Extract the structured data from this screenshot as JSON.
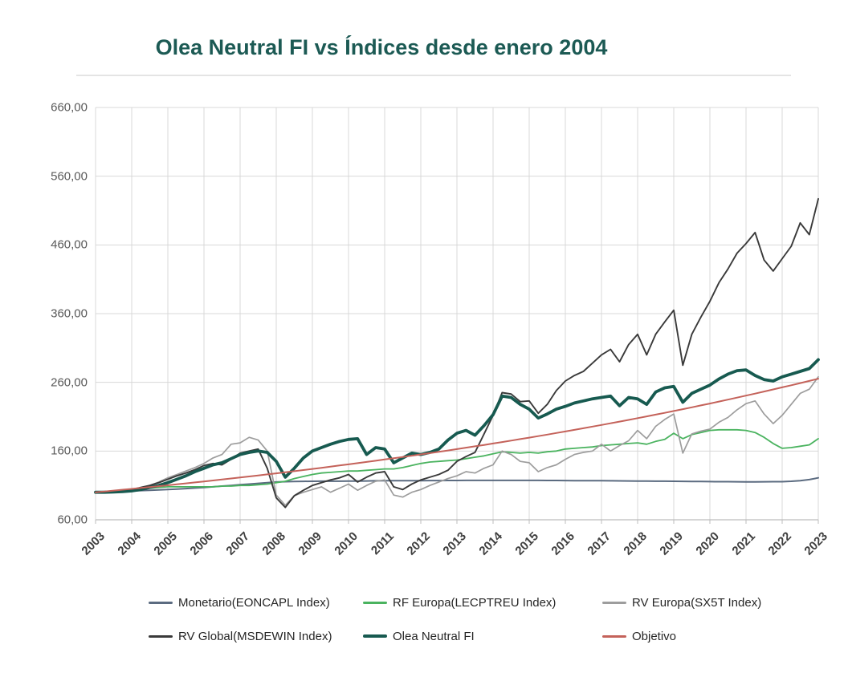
{
  "header": {
    "title": "Olea Neutral FI vs Índices desde enero 2004",
    "title_color": "#1c5a54"
  },
  "chart_data": {
    "type": "line",
    "title": "Olea Neutral FI vs Índices desde enero 2004",
    "x_start": 2003,
    "x_step": 0.25,
    "x_tick_labels": [
      "2003",
      "2004",
      "2005",
      "2006",
      "2007",
      "2008",
      "2009",
      "2010",
      "2011",
      "2012",
      "2013",
      "2014",
      "2015",
      "2016",
      "2017",
      "2018",
      "2019",
      "2020",
      "2021",
      "2022",
      "2023"
    ],
    "y_axis": {
      "min": 60,
      "max": 660,
      "gridline_step": 100,
      "grid": true
    },
    "y_ticks": [
      {
        "value": 660,
        "label": "660,00"
      },
      {
        "value": 560,
        "label": "560,00"
      },
      {
        "value": 460,
        "label": "460,00"
      },
      {
        "value": 360,
        "label": "360,00"
      },
      {
        "value": 260,
        "label": "260,00"
      },
      {
        "value": 160,
        "label": "160,00"
      },
      {
        "value": 60,
        "label": "60,00"
      }
    ],
    "colors": {
      "gridline": "#d8d8d8",
      "axis": "#bdbdbd"
    },
    "legend_position": "bottom",
    "legend_rows": [
      [
        0,
        1,
        2
      ],
      [
        3,
        4,
        5
      ]
    ],
    "series": [
      {
        "name": "Monetario(EONCAPL Index)",
        "color": "#5b6b80",
        "width": 2,
        "values": [
          100,
          100.5,
          101,
          101.5,
          102,
          102.5,
          103,
          103.5,
          104,
          104.7,
          105.4,
          106.2,
          107,
          108,
          109,
          110,
          111,
          112,
          113,
          114,
          115,
          115.4,
          115.7,
          115.9,
          116,
          116.1,
          116.2,
          116.2,
          116.3,
          116.4,
          116.5,
          116.7,
          116.8,
          116.9,
          117,
          117,
          117,
          117.1,
          117.1,
          117.2,
          117.2,
          117.3,
          117.3,
          117.3,
          117.3,
          117.3,
          117.3,
          117.3,
          117.3,
          117.3,
          117.2,
          117.2,
          117.1,
          117,
          117,
          116.9,
          116.8,
          116.7,
          116.6,
          116.5,
          116.4,
          116.3,
          116.2,
          116.1,
          116,
          115.9,
          115.8,
          115.7,
          115.6,
          115.5,
          115.4,
          115.3,
          115.2,
          115.2,
          115.3,
          115.4,
          115.5,
          116,
          117,
          118.5,
          121
        ]
      },
      {
        "name": "RF Europa(LECPTREU Index)",
        "color": "#4ab35f",
        "width": 1.8,
        "values": [
          100,
          101,
          102,
          103,
          104,
          105,
          106,
          107,
          108,
          108,
          108,
          108,
          108,
          108,
          109,
          109,
          110,
          110,
          111,
          112,
          114,
          116,
          120,
          123,
          126,
          128,
          129,
          130,
          131,
          131,
          132,
          133,
          134,
          134,
          136,
          139,
          142,
          144,
          145,
          146,
          147,
          149,
          151,
          153,
          156,
          159,
          158,
          157,
          158,
          157,
          159,
          160,
          163,
          164,
          165,
          166,
          168,
          169,
          170,
          171,
          172,
          170,
          174,
          177,
          186,
          178,
          184,
          187,
          190,
          191,
          191,
          191,
          190,
          187,
          180,
          171,
          164,
          165,
          167,
          169,
          178
        ]
      },
      {
        "name": "RV Europa(SX5T Index)",
        "color": "#9d9d9d",
        "width": 1.7,
        "values": [
          100,
          101,
          102,
          102,
          103,
          106,
          110,
          115,
          121,
          126,
          131,
          136,
          142,
          150,
          155,
          170,
          172,
          180,
          176,
          160,
          96,
          81,
          95,
          100,
          104,
          108,
          100,
          106,
          112,
          103,
          110,
          116,
          118,
          96,
          93,
          100,
          104,
          110,
          115,
          120,
          124,
          130,
          128,
          135,
          140,
          160,
          155,
          145,
          143,
          130,
          136,
          140,
          148,
          155,
          158,
          160,
          170,
          160,
          168,
          175,
          190,
          178,
          196,
          206,
          214,
          157,
          185,
          189,
          192,
          202,
          209,
          220,
          229,
          233,
          214,
          200,
          212,
          228,
          244,
          250,
          268
        ]
      },
      {
        "name": "RV Global(MSDEWIN Index)",
        "color": "#3a3a3a",
        "width": 1.9,
        "values": [
          100,
          101,
          102,
          103,
          104,
          107,
          110,
          114,
          119,
          124,
          128,
          133,
          139,
          142,
          140,
          148,
          157,
          160,
          163,
          135,
          92,
          78,
          95,
          103,
          110,
          114,
          118,
          121,
          126,
          115,
          122,
          128,
          130,
          108,
          104,
          112,
          118,
          122,
          126,
          132,
          145,
          152,
          158,
          185,
          212,
          245,
          243,
          232,
          233,
          215,
          228,
          248,
          262,
          270,
          276,
          288,
          300,
          308,
          290,
          315,
          330,
          300,
          330,
          348,
          365,
          285,
          330,
          355,
          378,
          405,
          425,
          448,
          462,
          478,
          438,
          422,
          440,
          458,
          492,
          475,
          527
        ]
      },
      {
        "name": "Olea Neutral FI",
        "color": "#175a50",
        "width": 3.8,
        "values": [
          100,
          100,
          100.5,
          101,
          102,
          104,
          107,
          110,
          114,
          119,
          124,
          130,
          135,
          140,
          143,
          149,
          155,
          158,
          160,
          158,
          145,
          122,
          135,
          150,
          160,
          165,
          170,
          174,
          177,
          178,
          155,
          165,
          163,
          143,
          150,
          157,
          155,
          158,
          163,
          176,
          186,
          190,
          183,
          197,
          213,
          240,
          238,
          228,
          221,
          208,
          214,
          221,
          225,
          230,
          233,
          236,
          238,
          240,
          226,
          238,
          236,
          228,
          246,
          252,
          254,
          231,
          244,
          250,
          256,
          265,
          272,
          277,
          278,
          270,
          264,
          262,
          268,
          272,
          276,
          280,
          293
        ]
      },
      {
        "name": "Objetivo",
        "color": "#c4625a",
        "width": 2,
        "values": [
          100,
          101.23,
          102.47,
          103.73,
          105,
          106.29,
          107.59,
          108.92,
          110.25,
          111.6,
          112.97,
          114.36,
          115.76,
          117.18,
          118.62,
          120.08,
          121.55,
          123.04,
          124.55,
          126.08,
          127.63,
          129.2,
          130.78,
          132.39,
          134.01,
          135.65,
          137.32,
          139.01,
          140.71,
          142.44,
          144.19,
          145.96,
          147.75,
          149.56,
          151.39,
          153.25,
          155.13,
          157.03,
          158.96,
          160.91,
          162.89,
          164.89,
          166.91,
          168.96,
          171.03,
          173.13,
          175.26,
          177.41,
          179.59,
          181.79,
          184.02,
          186.28,
          188.56,
          190.88,
          193.22,
          195.6,
          197.99,
          200.42,
          202.88,
          205.38,
          207.89,
          210.45,
          213.03,
          215.65,
          218.29,
          220.97,
          223.68,
          226.43,
          229.2,
          232.01,
          234.86,
          237.75,
          240.66,
          243.62,
          246.61,
          249.64,
          252.7,
          255.8,
          258.94,
          262.12,
          265.33
        ]
      }
    ]
  }
}
